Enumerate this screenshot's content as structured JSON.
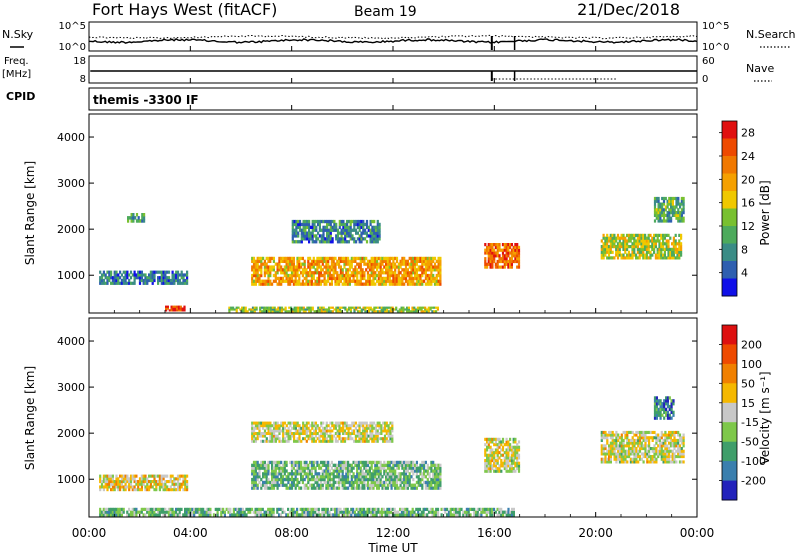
{
  "header": {
    "station": "Fort Hays West (fitACF)",
    "beam": "Beam 19",
    "date": "21/Dec/2018"
  },
  "top_panels": {
    "nsky_label": "N.Sky",
    "nsearch_label": "N.Search",
    "freq_label_1": "Freq.",
    "freq_label_2": "[MHz]",
    "nave_label": "Nave",
    "cpid_label": "CPID",
    "cpid_value": "themis -3300 IF",
    "noise_left_ticks": [
      "10^5",
      "10^0"
    ],
    "noise_right_ticks": [
      "10^5",
      "10^0"
    ],
    "freq_left_ticks": [
      "18",
      "8"
    ],
    "freq_right_ticks": [
      "60",
      "0"
    ]
  },
  "time_axis": {
    "label": "Time UT",
    "ticks": [
      "00:00",
      "04:00",
      "08:00",
      "12:00",
      "16:00",
      "20:00",
      "00:00"
    ]
  },
  "chart_data": [
    {
      "type": "heatmap",
      "name": "power",
      "ylabel": "Slant Range [km]",
      "xlabel": "",
      "ylim": [
        180,
        4500
      ],
      "yticks": [
        "1000",
        "2000",
        "3000",
        "4000"
      ],
      "colorbar": {
        "label": "Power [dB]",
        "ticks": [
          "4",
          "8",
          "12",
          "16",
          "20",
          "24",
          "28"
        ],
        "colors": [
          "#1010e8",
          "#2e5fb0",
          "#3a8c86",
          "#4daa5c",
          "#78c030",
          "#f0c800",
          "#f5a000",
          "#f07800",
          "#ee4a00",
          "#e01010"
        ],
        "min": 0,
        "max": 30
      },
      "regions": [
        {
          "t0": 0.4,
          "t1": 3.9,
          "r0": 800,
          "r1": 1100,
          "level": 0.22
        },
        {
          "t0": 6.4,
          "t1": 13.9,
          "r0": 780,
          "r1": 1400,
          "level": 0.65
        },
        {
          "t0": 15.6,
          "t1": 17.0,
          "r0": 1150,
          "r1": 1700,
          "level": 0.8
        },
        {
          "t0": 20.2,
          "t1": 23.4,
          "r0": 1350,
          "r1": 1900,
          "level": 0.5
        },
        {
          "t0": 22.3,
          "t1": 23.5,
          "r0": 2150,
          "r1": 2700,
          "level": 0.35
        },
        {
          "t0": 1.5,
          "t1": 2.2,
          "r0": 2150,
          "r1": 2350,
          "level": 0.3
        },
        {
          "t0": 5.5,
          "t1": 13.8,
          "r0": 200,
          "r1": 320,
          "level": 0.45
        },
        {
          "t0": 3.0,
          "t1": 3.8,
          "r0": 220,
          "r1": 340,
          "level": 0.9
        },
        {
          "t0": 8.0,
          "t1": 11.5,
          "r0": 1700,
          "r1": 2200,
          "level": 0.25
        }
      ]
    },
    {
      "type": "heatmap",
      "name": "velocity",
      "ylabel": "Slant Range [km]",
      "xlabel": "",
      "ylim": [
        180,
        4500
      ],
      "yticks": [
        "1000",
        "2000",
        "3000",
        "4000"
      ],
      "colorbar": {
        "label": "Velocity [m s⁻¹]",
        "ticks": [
          "200",
          "100",
          "50",
          "15",
          "-15",
          "-50",
          "-100",
          "-200"
        ],
        "colors": [
          "#2222bb",
          "#3a7fae",
          "#3f9e6a",
          "#7ec84a",
          "#c8c8c8",
          "#f5b800",
          "#f08000",
          "#ee4a00",
          "#dd1010"
        ],
        "min": -250,
        "max": 250
      },
      "regions": [
        {
          "t0": 0.4,
          "t1": 3.9,
          "r0": 750,
          "r1": 1100,
          "level": 0.55
        },
        {
          "t0": 6.4,
          "t1": 13.9,
          "r0": 780,
          "r1": 1400,
          "level": 0.35
        },
        {
          "t0": 15.6,
          "t1": 17.0,
          "r0": 1150,
          "r1": 1900,
          "level": 0.5
        },
        {
          "t0": 20.2,
          "t1": 23.5,
          "r0": 1350,
          "r1": 2050,
          "level": 0.5
        },
        {
          "t0": 22.3,
          "t1": 23.1,
          "r0": 2300,
          "r1": 2800,
          "level": 0.2
        },
        {
          "t0": 0.4,
          "t1": 16.8,
          "r0": 200,
          "r1": 380,
          "level": 0.35
        },
        {
          "t0": 6.4,
          "t1": 12.0,
          "r0": 1800,
          "r1": 2250,
          "level": 0.5
        }
      ]
    }
  ]
}
